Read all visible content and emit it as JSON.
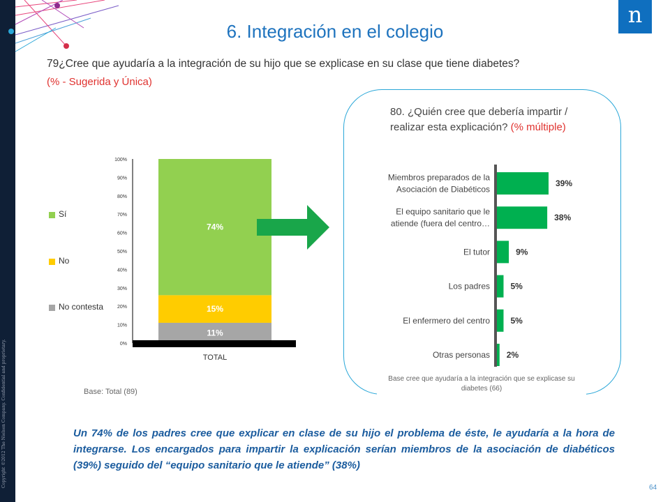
{
  "title": "6. Integración en el colegio",
  "question79": {
    "text": "79¿Cree que ayudaría a la integración de su hijo que se explicase en su clase que tiene diabetes?",
    "note": "(% - Sugerida y Única)",
    "base": "Base: Total (89)"
  },
  "question80": {
    "text": "80. ¿Quién cree que debería impartir / realizar esta explicación?",
    "note": "(% múltiple)",
    "base": "Base cree que ayudaría a la integración que se explicase su diabetes (66)"
  },
  "summary": "Un 74% de los padres cree que explicar en clase de su hijo el problema de éste, le ayudaría a la hora de integrarse. Los encargados para impartir la explicación serían miembros de la asociación de diabéticos (39%) seguido del “equipo sanitario que le atiende” (38%)",
  "page_number": "64",
  "copyright": "Copyright ©2012 The Nielsen Company. Confidential and proprietary.",
  "logo_letter": "n",
  "colors": {
    "si": "#92d050",
    "no": "#ffcc00",
    "no_contesta": "#a6a6a6",
    "bar_green": "#00b050",
    "title_blue": "#1e73be",
    "accent_red": "#e0322f",
    "arrow_green": "#19a64a"
  },
  "icons": {
    "arrow": "right-arrow-icon"
  },
  "chart_data": [
    {
      "type": "bar",
      "stacked": true,
      "categories": [
        "TOTAL"
      ],
      "series": [
        {
          "name": "No contesta",
          "values": [
            11
          ],
          "labels": [
            "11%"
          ]
        },
        {
          "name": "No",
          "values": [
            15
          ],
          "labels": [
            "15%"
          ]
        },
        {
          "name": "Sí",
          "values": [
            74
          ],
          "labels": [
            "74%"
          ]
        }
      ],
      "legend_order": [
        "Sí",
        "No",
        "No contesta"
      ],
      "yticks": [
        "0%",
        "10%",
        "20%",
        "30%",
        "40%",
        "50%",
        "60%",
        "70%",
        "80%",
        "90%",
        "100%"
      ],
      "ylim": [
        0,
        100
      ],
      "legend": "left"
    },
    {
      "type": "bar",
      "orientation": "horizontal",
      "categories": [
        "Miembros preparados de la Asociación de Diabéticos",
        "El equipo sanitario que le atiende (fuera del centro…",
        "El tutor",
        "Los padres",
        "El enfermero del centro",
        "Otras personas"
      ],
      "values": [
        39,
        38,
        9,
        5,
        5,
        2
      ],
      "labels": [
        "39%",
        "38%",
        "9%",
        "5%",
        "5%",
        "2%"
      ],
      "xlim": [
        0,
        39
      ]
    }
  ]
}
